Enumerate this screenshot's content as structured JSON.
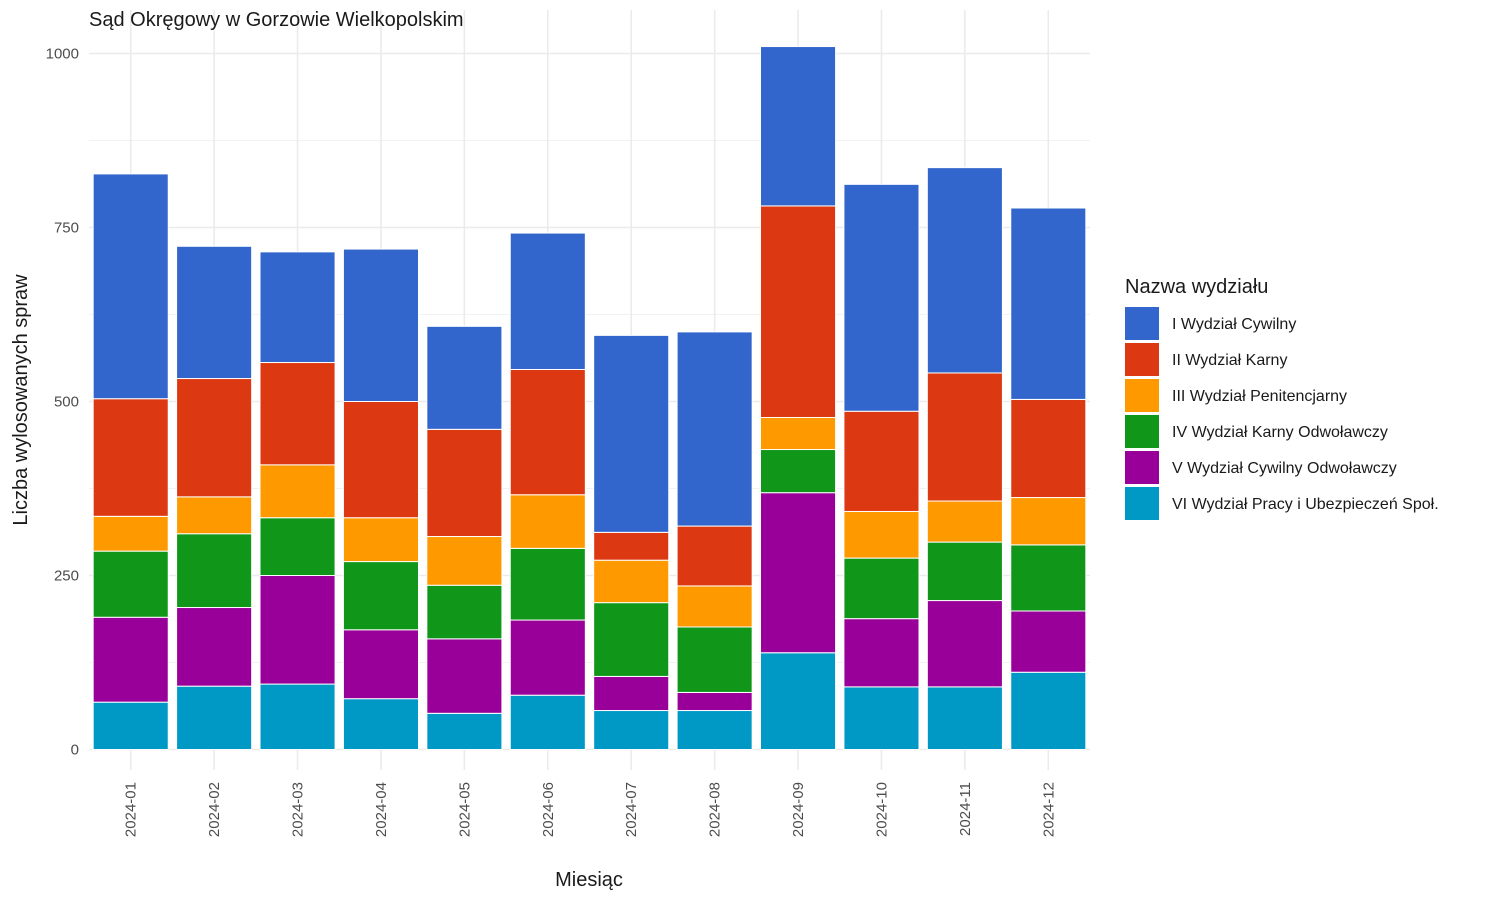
{
  "chart_data": {
    "type": "bar",
    "stacked": true,
    "title": "Sąd Okręgowy w Gorzowie Wielkopolskim",
    "xlabel": "Miesiąc",
    "ylabel": "Liczba wylosowanych spraw",
    "ylim": [
      0,
      1050
    ],
    "yticks": [
      0,
      250,
      500,
      750,
      1000
    ],
    "grid": true,
    "legend_position": "right",
    "legend_title": "Nazwa wydziału",
    "categories": [
      "2024-01",
      "2024-02",
      "2024-03",
      "2024-04",
      "2024-05",
      "2024-06",
      "2024-07",
      "2024-08",
      "2024-09",
      "2024-10",
      "2024-11",
      "2024-12"
    ],
    "series": [
      {
        "name": "I Wydział Cywilny",
        "color": "#3366CC",
        "values": [
          323,
          190,
          159,
          219,
          148,
          196,
          283,
          279,
          229,
          326,
          295,
          275
        ]
      },
      {
        "name": "II Wydział Karny",
        "color": "#DC3912",
        "values": [
          169,
          170,
          147,
          167,
          154,
          180,
          40,
          86,
          304,
          144,
          184,
          141
        ]
      },
      {
        "name": "III Wydział Penitencjarny",
        "color": "#FF9900",
        "values": [
          50,
          53,
          76,
          63,
          70,
          77,
          61,
          59,
          46,
          67,
          59,
          68
        ]
      },
      {
        "name": "IV Wydział Karny Odwoławczy",
        "color": "#109618",
        "values": [
          95,
          106,
          83,
          98,
          77,
          103,
          106,
          94,
          62,
          87,
          84,
          95
        ]
      },
      {
        "name": "V Wydział Cywilny Odwoławczy",
        "color": "#990099",
        "values": [
          122,
          113,
          156,
          99,
          107,
          108,
          49,
          26,
          230,
          98,
          124,
          88
        ]
      },
      {
        "name": "VI Wydział Pracy i Ubezpieczeń Społ.",
        "color": "#0099C6",
        "values": [
          68,
          91,
          94,
          73,
          52,
          78,
          56,
          56,
          139,
          90,
          90,
          111
        ]
      }
    ]
  }
}
